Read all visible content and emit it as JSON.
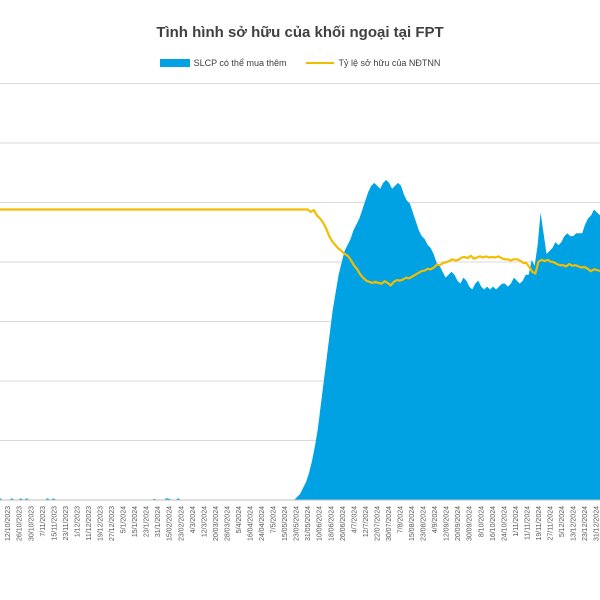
{
  "chart_data": {
    "type": "area+line",
    "title": "Tình hình sở hữu của khối ngoại tại FPT",
    "xlabel": "",
    "ylabel": "",
    "grid": true,
    "legend_position": "top-center",
    "x_tick_labels": [
      "12/10/2023",
      "26/10/2023",
      "30/10/2023",
      "7/11/2023",
      "15/11/2023",
      "23/11/2023",
      "1/12/2023",
      "11/12/2023",
      "19/12/2023",
      "27/12/2023",
      "5/1/2024",
      "15/1/2024",
      "23/1/2024",
      "31/1/2024",
      "15/02/2024",
      "23/02/2024",
      "4/3/2024",
      "12/3/2024",
      "20/03/2024",
      "28/03/2024",
      "5/4/2024",
      "16/04/2024",
      "24/04/2024",
      "7/5/2024",
      "15/05/2024",
      "23/05/2024",
      "31/05/2024",
      "10/06/2024",
      "18/06/2024",
      "26/06/2024",
      "4/7/2024",
      "12/7/2024",
      "22/07/2024",
      "30/07/2024",
      "7/8/2024",
      "15/08/2024",
      "23/08/2024",
      "4/9/2024",
      "12/09/2024",
      "20/09/2024",
      "30/09/2024",
      "8/10/2024",
      "16/10/2024",
      "24/10/2024",
      "1/11/2024",
      "11/11/2024",
      "19/11/2024",
      "27/11/2024",
      "5/12/2024",
      "13/12/2024",
      "23/12/2024",
      "31/12/2024"
    ],
    "series": [
      {
        "name": "SLCP có thể mua thêm",
        "kind": "area",
        "color": "#00A2E3",
        "values": [
          0.3,
          0,
          0,
          0,
          0.3,
          0,
          0,
          0.3,
          0,
          0.3,
          0,
          0,
          0,
          0,
          0,
          0,
          0.3,
          0,
          0.3,
          0,
          0,
          0,
          0,
          0,
          0,
          0,
          0,
          0,
          0,
          0,
          0,
          0,
          0,
          0,
          0,
          0,
          0,
          0,
          0,
          0,
          0,
          0,
          0,
          0,
          0,
          0,
          0,
          0,
          0,
          0,
          0,
          0,
          0.2,
          0,
          0,
          0,
          0.3,
          0.2,
          0,
          0,
          0.3,
          0,
          0,
          0,
          0,
          0,
          0,
          0,
          0,
          0,
          0,
          0,
          0,
          0,
          0,
          0,
          0,
          0,
          0,
          0,
          0,
          0,
          0,
          0,
          0,
          0,
          0,
          0,
          0,
          0,
          0,
          0,
          0,
          0,
          0,
          0,
          0,
          0,
          0,
          0,
          0.5,
          1,
          2,
          3,
          4.5,
          6.5,
          9,
          12,
          16,
          20,
          24,
          28,
          32,
          35,
          38,
          40,
          42,
          43,
          44,
          45.5,
          46.5,
          47.5,
          49,
          50.5,
          52,
          53,
          53.5,
          53,
          52.5,
          53.5,
          54,
          53.5,
          52.5,
          53,
          53.5,
          53,
          51.5,
          50.5,
          50,
          48.5,
          47,
          45.5,
          44.5,
          44,
          43,
          42.5,
          41.5,
          40,
          39.5,
          38.5,
          37.5,
          38,
          38.5,
          38,
          37,
          36.5,
          37.5,
          37,
          36,
          35.5,
          36.5,
          37,
          36,
          35.5,
          36,
          35.5,
          36,
          35.5,
          36,
          36.5,
          36.5,
          36,
          36.5,
          37.5,
          37,
          36.5,
          37,
          38,
          38,
          40.5,
          39.5,
          43,
          48.5,
          45,
          41.5,
          42,
          42.5,
          43.5,
          43,
          43.5,
          44.5,
          45,
          44.5,
          44.5,
          45,
          45,
          45,
          46.5,
          47.5,
          48,
          49,
          48.5,
          48
        ]
      },
      {
        "name": "Tỷ lệ sở hữu của NĐTNN",
        "kind": "line",
        "color": "#F3BD00",
        "values": [
          49,
          49,
          49,
          49,
          49,
          49,
          49,
          49,
          49,
          49,
          49,
          49,
          49,
          49,
          49,
          49,
          49,
          49,
          49,
          49,
          49,
          49,
          49,
          49,
          49,
          49,
          49,
          49,
          49,
          49,
          49,
          49,
          49,
          49,
          49,
          49,
          49,
          49,
          49,
          49,
          49,
          49,
          49,
          49,
          49,
          49,
          49,
          49,
          49,
          49,
          49,
          49,
          49,
          49,
          49,
          49,
          49,
          49,
          49,
          49,
          49,
          49,
          49,
          49,
          49,
          49,
          49,
          49,
          49,
          49,
          49,
          49,
          49,
          49,
          49,
          49,
          49,
          49,
          49,
          49,
          49,
          49,
          49,
          49,
          49,
          49,
          49,
          49,
          49,
          49,
          49,
          49,
          49,
          49,
          49,
          49,
          49,
          49,
          49,
          49,
          49,
          48.6,
          48.9,
          48,
          47.5,
          46.8,
          45.8,
          44.5,
          43.6,
          43,
          42.4,
          42,
          41.5,
          41.2,
          40.5,
          39.6,
          39,
          38.1,
          37.5,
          37,
          36.8,
          36.6,
          36.8,
          36.6,
          36.5,
          36.9,
          36.6,
          36.2,
          36.8,
          37.1,
          37,
          37.2,
          37.5,
          37.4,
          37.7,
          38,
          38.3,
          38.6,
          38.7,
          39,
          38.9,
          39.2,
          39.7,
          39.6,
          40,
          40.1,
          40.3,
          40.6,
          40.4,
          40.5,
          40.9,
          41,
          40.8,
          41.2,
          40.7,
          40.9,
          41.1,
          40.9,
          41.1,
          40.9,
          41,
          40.9,
          41.1,
          40.8,
          40.6,
          40.6,
          40.4,
          40.6,
          40.6,
          40.4,
          40,
          40,
          39.3,
          38.5,
          38.2,
          40.2,
          40.5,
          40.3,
          40.5,
          40.2,
          40.1,
          39.8,
          39.6,
          39.6,
          39.4,
          39.8,
          39.5,
          39.6,
          39.4,
          39.2,
          39.3,
          39,
          38.6,
          38.9,
          38.8,
          38.6
        ]
      }
    ]
  }
}
